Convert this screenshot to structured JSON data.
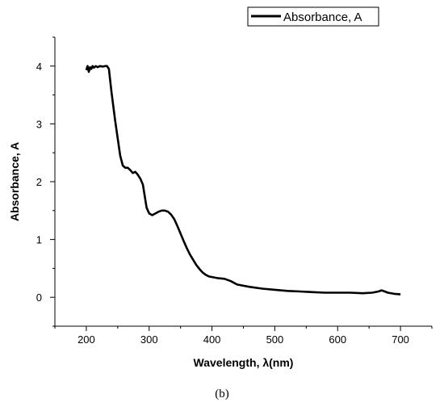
{
  "chart_data": {
    "type": "line",
    "xlabel": "Wavelength, λ(nm)",
    "ylabel": "Absorbance, A",
    "xlim": [
      150,
      750
    ],
    "ylim": [
      -0.5,
      4.5
    ],
    "xticks": [
      200,
      300,
      400,
      500,
      600,
      700
    ],
    "yticks": [
      0,
      1,
      2,
      3,
      4
    ],
    "grid": false,
    "legend_position": "top-right",
    "series": [
      {
        "name": "Absorbance,  A",
        "color": "#000000",
        "x": [
          200,
          202,
          204,
          206,
          208,
          210,
          212,
          215,
          218,
          222,
          226,
          230,
          233,
          236,
          238,
          240,
          243,
          246,
          250,
          254,
          258,
          262,
          266,
          270,
          274,
          278,
          282,
          286,
          290,
          293,
          296,
          300,
          305,
          310,
          315,
          320,
          325,
          330,
          335,
          340,
          345,
          350,
          355,
          360,
          365,
          370,
          375,
          380,
          385,
          390,
          395,
          400,
          410,
          420,
          430,
          440,
          450,
          460,
          480,
          500,
          520,
          540,
          560,
          580,
          600,
          620,
          640,
          655,
          665,
          670,
          675,
          680,
          690,
          700
        ],
        "y": [
          3.93,
          4.0,
          3.9,
          3.98,
          3.95,
          4.0,
          3.97,
          4.0,
          3.98,
          4.0,
          3.99,
          4.0,
          4.0,
          3.95,
          3.75,
          3.55,
          3.3,
          3.05,
          2.75,
          2.45,
          2.28,
          2.24,
          2.24,
          2.2,
          2.15,
          2.17,
          2.12,
          2.05,
          1.95,
          1.75,
          1.55,
          1.45,
          1.42,
          1.45,
          1.48,
          1.5,
          1.5,
          1.48,
          1.43,
          1.35,
          1.23,
          1.1,
          0.97,
          0.85,
          0.74,
          0.65,
          0.56,
          0.49,
          0.43,
          0.39,
          0.36,
          0.35,
          0.33,
          0.32,
          0.28,
          0.22,
          0.2,
          0.18,
          0.15,
          0.13,
          0.11,
          0.1,
          0.09,
          0.08,
          0.08,
          0.08,
          0.07,
          0.08,
          0.1,
          0.12,
          0.1,
          0.08,
          0.06,
          0.05
        ]
      }
    ]
  },
  "caption": "(b)"
}
